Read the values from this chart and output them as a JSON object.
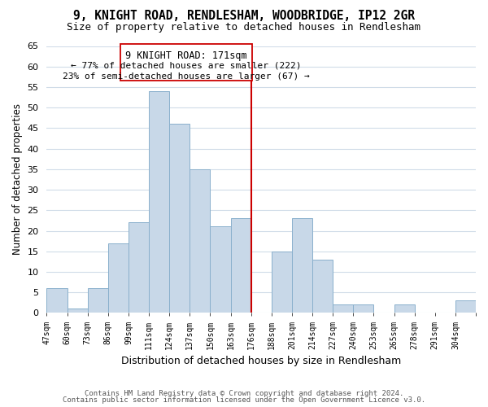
{
  "title": "9, KNIGHT ROAD, RENDLESHAM, WOODBRIDGE, IP12 2GR",
  "subtitle": "Size of property relative to detached houses in Rendlesham",
  "xlabel": "Distribution of detached houses by size in Rendlesham",
  "ylabel": "Number of detached properties",
  "bin_labels": [
    "47sqm",
    "60sqm",
    "73sqm",
    "86sqm",
    "99sqm",
    "111sqm",
    "124sqm",
    "137sqm",
    "150sqm",
    "163sqm",
    "176sqm",
    "188sqm",
    "201sqm",
    "214sqm",
    "227sqm",
    "240sqm",
    "253sqm",
    "265sqm",
    "278sqm",
    "291sqm",
    "304sqm"
  ],
  "bar_values": [
    6,
    1,
    6,
    17,
    22,
    54,
    46,
    35,
    21,
    23,
    0,
    15,
    23,
    13,
    2,
    2,
    0,
    2,
    0,
    0,
    3
  ],
  "bar_color": "#c8d8e8",
  "bar_edge_color": "#8ab0cc",
  "vline_color": "#cc0000",
  "annotation_title": "9 KNIGHT ROAD: 171sqm",
  "annotation_line1": "← 77% of detached houses are smaller (222)",
  "annotation_line2": "23% of semi-detached houses are larger (67) →",
  "annotation_box_color": "#ffffff",
  "annotation_box_edge": "#cc0000",
  "ylim": [
    0,
    65
  ],
  "yticks": [
    0,
    5,
    10,
    15,
    20,
    25,
    30,
    35,
    40,
    45,
    50,
    55,
    60,
    65
  ],
  "footer1": "Contains HM Land Registry data © Crown copyright and database right 2024.",
  "footer2": "Contains public sector information licensed under the Open Government Licence v3.0.",
  "background_color": "#ffffff",
  "plot_background": "#ffffff",
  "grid_color": "#d0dce8"
}
